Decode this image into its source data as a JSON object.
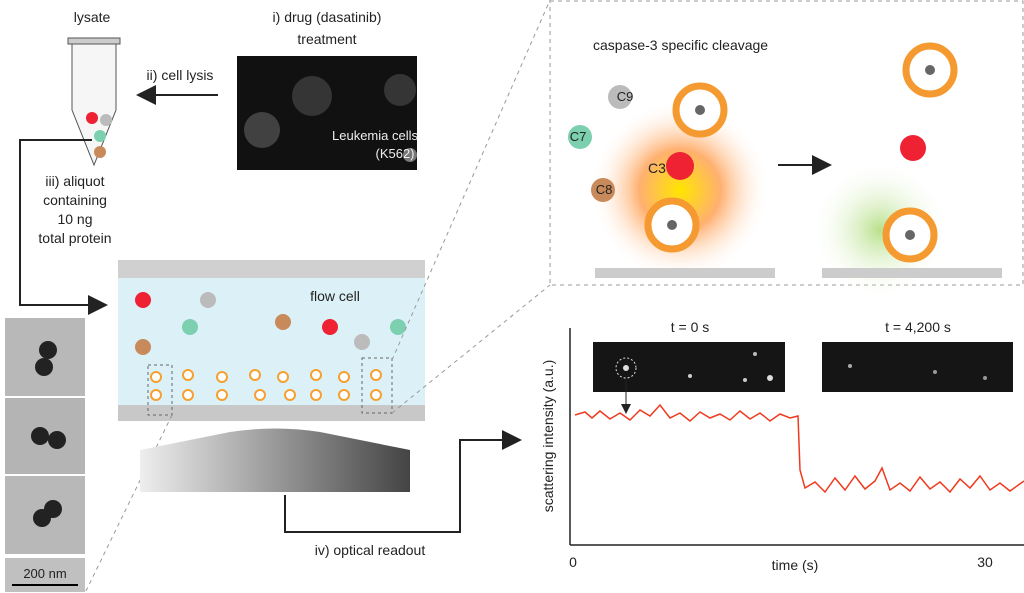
{
  "lysate": {
    "label": "lysate"
  },
  "drug_treatment": {
    "lines": [
      "i) drug (dasatinib)",
      "treatment"
    ]
  },
  "cell_lysis": {
    "label": "ii) cell lysis"
  },
  "cells_image": {
    "lines": [
      "Leukemia cells",
      "(K562)"
    ]
  },
  "aliquot": {
    "lines": [
      "iii) aliquot",
      "containing",
      "10 ng",
      "total protein"
    ]
  },
  "flow_cell": {
    "label": "flow cell"
  },
  "tem": {
    "scale_bar": "200 nm"
  },
  "cleavage": {
    "title": "caspase-3 specific cleavage",
    "caspases": [
      "C9",
      "C7",
      "C3",
      "C8"
    ]
  },
  "readout": {
    "label": "iv) optical readout"
  },
  "trace_plot": {
    "y_label": "scattering intensity (a.u.)",
    "x_label": "time (s)",
    "x_tick_labels": [
      "0",
      "30"
    ],
    "frame_labels": [
      "t = 0 s",
      "t = 4,200 s"
    ]
  }
}
